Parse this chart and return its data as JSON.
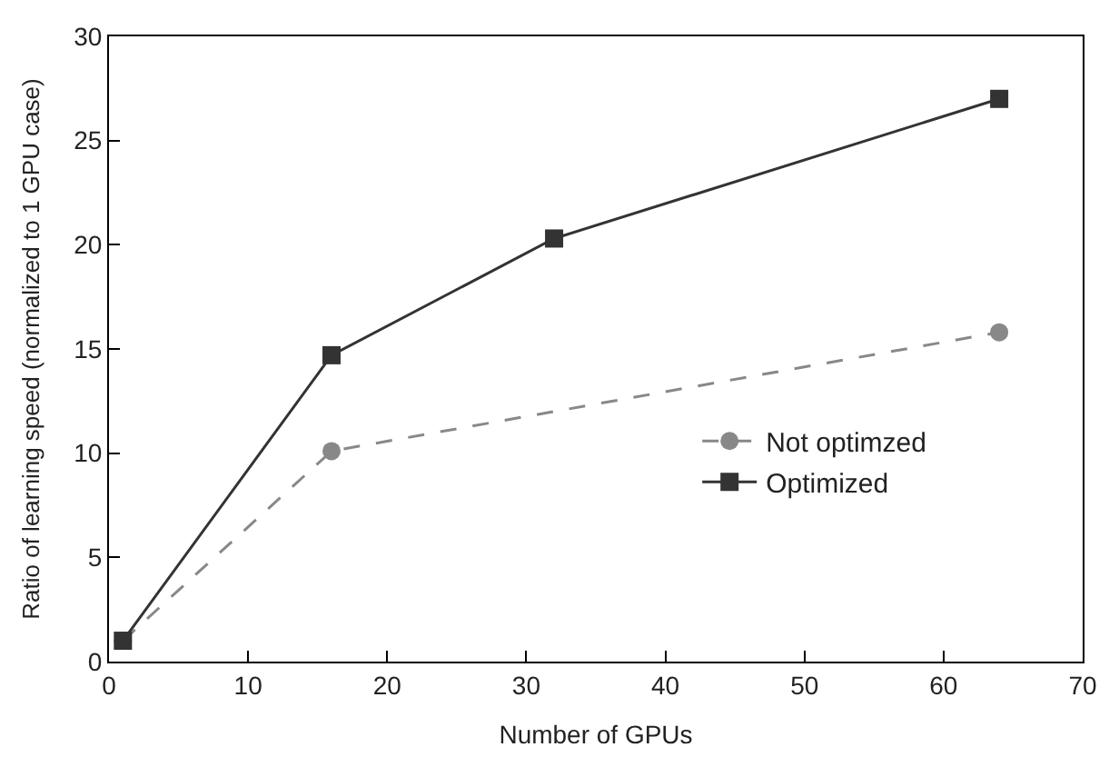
{
  "chart_data": {
    "type": "line",
    "xlabel": "Number of GPUs",
    "ylabel": "Ratio of learning speed (normalized to 1 GPU case)",
    "xlim": [
      0,
      70
    ],
    "xticks": [
      0,
      10,
      20,
      30,
      40,
      50,
      60,
      70
    ],
    "ylim": [
      0,
      30
    ],
    "yticks": [
      0,
      5,
      10,
      15,
      20,
      25,
      30
    ],
    "legend": "bottom right",
    "series": [
      {
        "name": "Not optimzed",
        "color": "#888888",
        "x": [
          1,
          16,
          64
        ],
        "values": [
          1,
          10.1,
          15.8
        ],
        "marker": "circle",
        "line_style": "dashed"
      },
      {
        "name": "Optimized",
        "color": "#333333",
        "x": [
          1,
          16,
          32,
          64
        ],
        "values": [
          1,
          14.7,
          20.3,
          27
        ],
        "marker": "square",
        "line_style": "solid"
      }
    ]
  }
}
